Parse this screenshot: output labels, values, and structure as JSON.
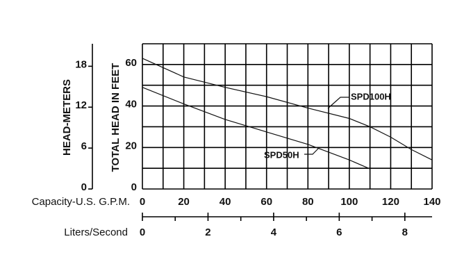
{
  "chart_data": {
    "type": "line",
    "x_label": "Capacity-U.S. G.P.M.",
    "y_label": "TOTAL HEAD IN FEET",
    "y2_label": "HEAD-METERS",
    "x2_label": "Liters/Second",
    "xlim": [
      0,
      140
    ],
    "xticks": [
      0,
      20,
      40,
      60,
      80,
      100,
      120,
      140
    ],
    "xminor": [
      10,
      30,
      50,
      70,
      90,
      110,
      130
    ],
    "ylim": [
      0,
      70
    ],
    "yticks": [
      0,
      20,
      40,
      60
    ],
    "yminor": [
      10,
      30,
      50,
      70
    ],
    "y2lim": [
      0,
      21.3
    ],
    "y2ticks": [
      0,
      6,
      12,
      18
    ],
    "x2lim": [
      0,
      8.83
    ],
    "x2ticks": [
      0,
      2,
      4,
      6,
      8
    ],
    "x2minor": [
      1,
      3,
      5,
      7
    ],
    "grid": true,
    "series": [
      {
        "name": "SPD100H",
        "color": "#111111",
        "x": [
          0,
          20,
          40,
          60,
          80,
          100,
          110,
          120,
          130,
          140
        ],
        "values": [
          63,
          54,
          49,
          44.5,
          39,
          34,
          30,
          25,
          19,
          14
        ]
      },
      {
        "name": "SPD50H",
        "color": "#111111",
        "x": [
          0,
          20,
          40,
          60,
          80,
          100,
          110
        ],
        "values": [
          49,
          41,
          33.5,
          27.5,
          21.5,
          14,
          9.7
        ]
      }
    ]
  }
}
